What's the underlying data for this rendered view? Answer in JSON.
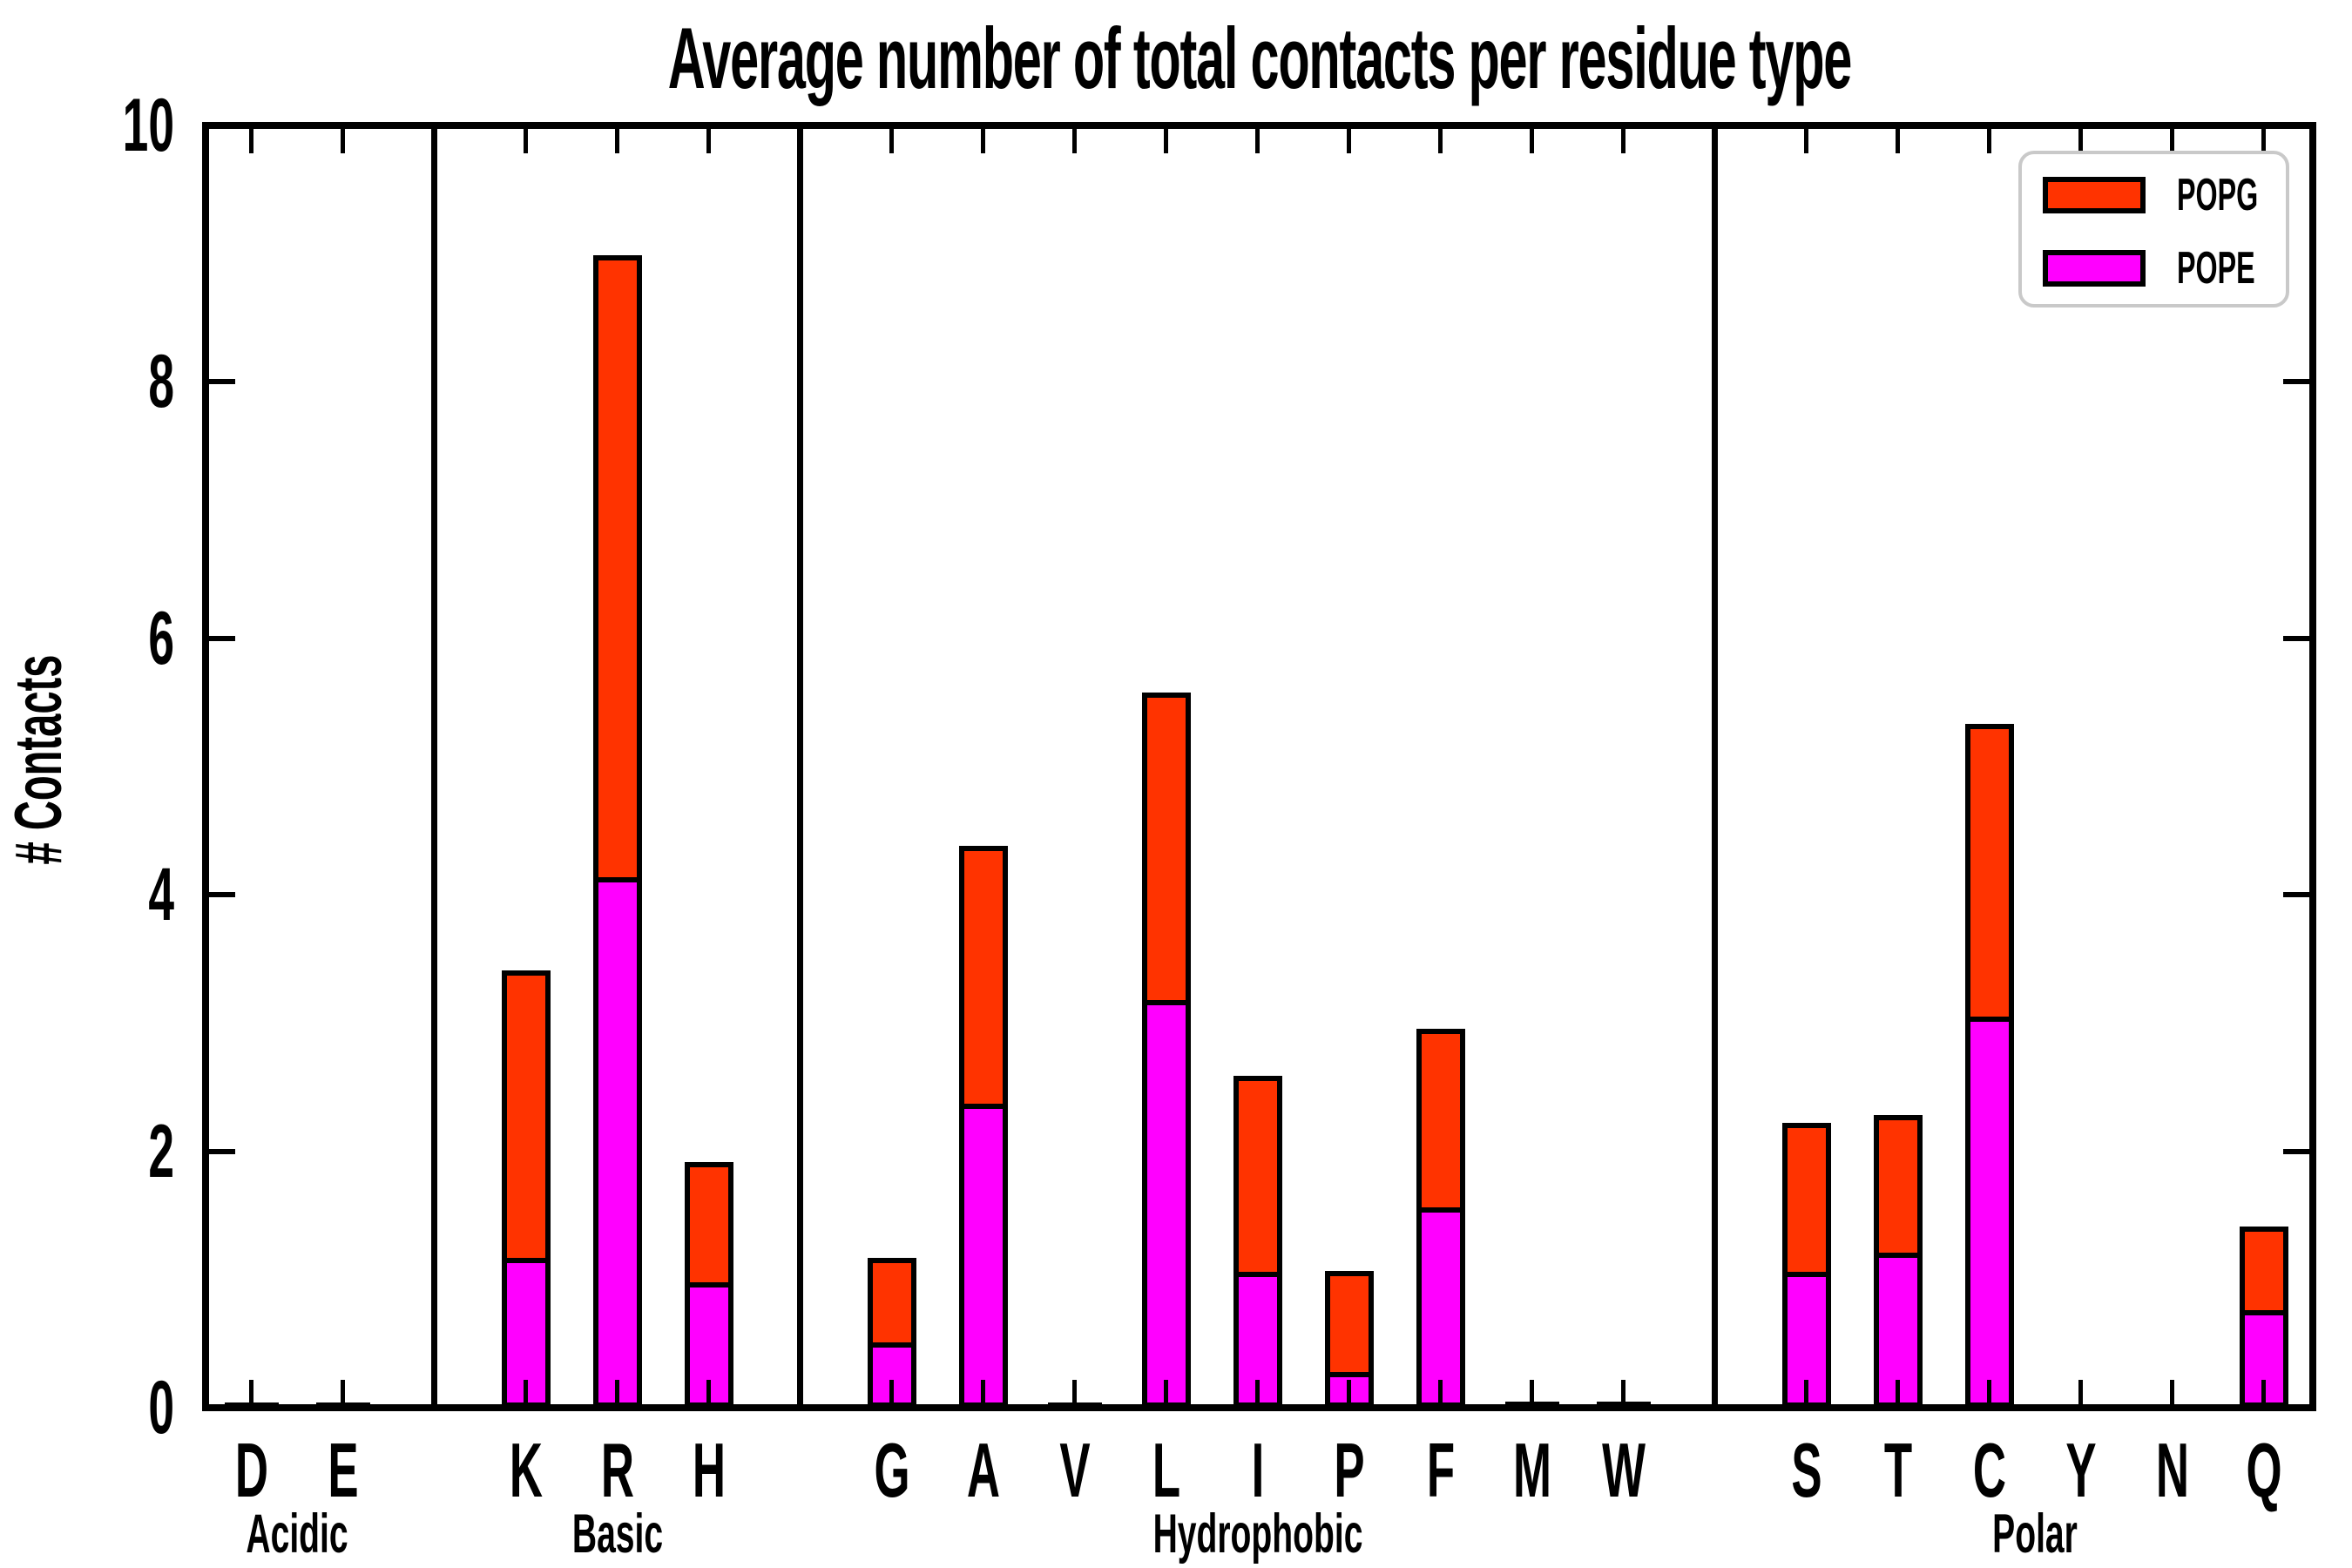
{
  "figure": {
    "background_color": "#ffffff",
    "axis_color": "#000000"
  },
  "chart_data": {
    "type": "bar",
    "stacked": true,
    "title": "Average number of total contacts per residue type",
    "xlabel": "",
    "ylabel": "# Contacts",
    "ylim": [
      0,
      10
    ],
    "yticks": [
      0,
      2,
      4,
      6,
      8,
      10
    ],
    "tick_direction": "in",
    "grid": false,
    "categories": [
      "D",
      "E",
      "K",
      "R",
      "H",
      "G",
      "A",
      "V",
      "L",
      "I",
      "P",
      "F",
      "M",
      "W",
      "S",
      "T",
      "C",
      "Y",
      "N",
      "Q"
    ],
    "groups": [
      {
        "label": "Acidic",
        "categories": [
          "D",
          "E"
        ]
      },
      {
        "label": "Basic",
        "categories": [
          "K",
          "R",
          "H"
        ]
      },
      {
        "label": "Hydrophobic",
        "categories": [
          "G",
          "A",
          "V",
          "L",
          "I",
          "P",
          "F",
          "M",
          "W"
        ]
      },
      {
        "label": "Polar",
        "categories": [
          "S",
          "T",
          "C",
          "Y",
          "N",
          "Q"
        ]
      }
    ],
    "series": [
      {
        "name": "POPE",
        "color": "#ff00ff",
        "values": [
          0.01,
          0.01,
          1.17,
          4.14,
          0.98,
          0.51,
          2.37,
          0.01,
          3.18,
          1.06,
          0.28,
          1.56,
          0.015,
          0.015,
          1.06,
          1.21,
          3.05,
          0.005,
          0.005,
          0.76
        ]
      },
      {
        "name": "POPG",
        "color": "#ff3300",
        "values": [
          0.01,
          0.01,
          2.24,
          4.85,
          0.94,
          0.66,
          2.01,
          0.01,
          2.4,
          1.53,
          0.79,
          1.39,
          0.015,
          0.015,
          1.16,
          1.07,
          2.28,
          0.005,
          0.005,
          0.65
        ]
      }
    ],
    "totals": [
      0.02,
      0.02,
      3.41,
      8.99,
      1.92,
      1.17,
      4.38,
      0.02,
      5.58,
      2.59,
      1.07,
      2.95,
      0.03,
      0.03,
      2.22,
      2.28,
      5.33,
      0.01,
      0.01,
      1.41
    ],
    "legend": {
      "position": "upper right",
      "entries": [
        "POPG",
        "POPE"
      ]
    }
  }
}
